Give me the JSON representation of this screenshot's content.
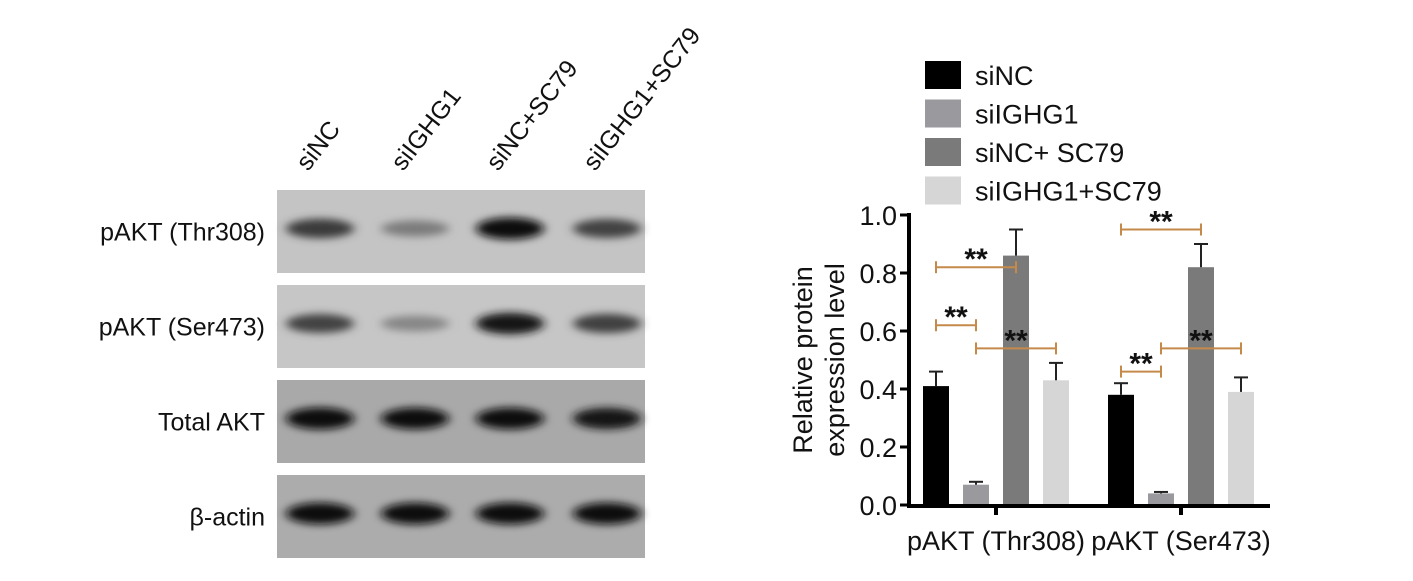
{
  "blot": {
    "lanes": [
      "siNC",
      "siIGHG1",
      "siNC+SC79",
      "siIGHG1+SC79"
    ],
    "rows": [
      {
        "label": "pAKT (Thr308)",
        "band_intensity": [
          0.75,
          0.4,
          1.0,
          0.7
        ],
        "background": "#c4c4c4"
      },
      {
        "label": "pAKT (Ser473)",
        "band_intensity": [
          0.7,
          0.35,
          0.95,
          0.72
        ],
        "background": "#c6c6c6"
      },
      {
        "label": "Total AKT",
        "band_intensity": [
          1.0,
          0.97,
          0.97,
          0.95
        ],
        "background": "#a9a9a9"
      },
      {
        "label": "β-actin",
        "band_intensity": [
          0.97,
          0.97,
          0.97,
          0.97
        ],
        "background": "#acacac"
      }
    ]
  },
  "chart_data": {
    "type": "bar",
    "categories": [
      "pAKT (Thr308)",
      "pAKT (Ser473)"
    ],
    "ylabel": "Relative protein expression level",
    "ylabel_lines": [
      "Relative protein",
      "expression level"
    ],
    "ylim": [
      0,
      1.0
    ],
    "yticks": [
      "0.0",
      "0.2",
      "0.4",
      "0.6",
      "0.8",
      "1.0"
    ],
    "grid": false,
    "legend_placement": "top",
    "series": [
      {
        "name": "siNC",
        "color": "#000000",
        "values": [
          0.41,
          0.38
        ],
        "errors": [
          0.05,
          0.04
        ]
      },
      {
        "name": "siIGHG1",
        "color": "#9a9a9e",
        "values": [
          0.07,
          0.04
        ],
        "errors": [
          0.01,
          0.005
        ]
      },
      {
        "name": "siNC+ SC79",
        "color": "#7a7a7a",
        "values": [
          0.86,
          0.82
        ],
        "errors": [
          0.09,
          0.08
        ]
      },
      {
        "name": "siIGHG1+SC79",
        "color": "#d6d6d6",
        "values": [
          0.43,
          0.39
        ],
        "errors": [
          0.06,
          0.05
        ]
      }
    ],
    "significance": [
      {
        "category": 0,
        "from": 0,
        "to": 2,
        "y": 0.82,
        "label": "**"
      },
      {
        "category": 0,
        "from": 0,
        "to": 1,
        "y": 0.62,
        "label": "**"
      },
      {
        "category": 0,
        "from": 1,
        "to": 3,
        "y": 0.54,
        "label": "**"
      },
      {
        "category": 1,
        "from": 0,
        "to": 2,
        "y": 0.95,
        "label": "**"
      },
      {
        "category": 1,
        "from": 0,
        "to": 1,
        "y": 0.46,
        "label": "**"
      },
      {
        "category": 1,
        "from": 1,
        "to": 3,
        "y": 0.54,
        "label": "**"
      }
    ],
    "bracket_color": "#c58a4a"
  }
}
